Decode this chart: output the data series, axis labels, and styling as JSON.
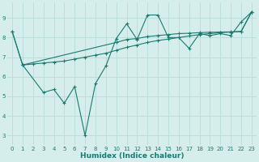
{
  "line1_x": [
    0,
    1,
    2,
    3,
    4,
    5,
    6,
    7,
    8,
    9,
    10,
    11,
    12,
    13,
    14,
    15,
    16,
    17,
    18,
    19,
    20,
    21,
    22,
    23
  ],
  "line1_y": [
    8.3,
    6.6,
    6.65,
    6.7,
    6.75,
    6.8,
    6.9,
    7.0,
    7.1,
    7.2,
    7.35,
    7.5,
    7.62,
    7.75,
    7.85,
    7.92,
    8.0,
    8.08,
    8.15,
    8.2,
    8.25,
    8.28,
    8.32,
    9.3
  ],
  "line2_x": [
    0,
    1,
    3,
    4,
    5,
    6,
    7,
    8,
    9,
    10,
    11,
    12,
    13,
    14,
    15,
    16,
    17,
    18,
    19,
    20,
    21,
    22,
    23
  ],
  "line2_y": [
    8.3,
    6.6,
    5.2,
    5.35,
    4.65,
    5.5,
    3.0,
    5.65,
    6.55,
    7.95,
    8.7,
    7.9,
    9.15,
    9.15,
    8.0,
    8.0,
    7.45,
    8.2,
    8.1,
    8.2,
    8.1,
    8.8,
    9.3
  ],
  "line3_x": [
    1,
    10,
    11,
    12,
    13,
    14,
    15,
    16,
    17,
    18,
    19,
    20,
    21,
    22,
    23
  ],
  "line3_y": [
    6.6,
    7.75,
    7.9,
    7.95,
    8.05,
    8.1,
    8.15,
    8.2,
    8.22,
    8.25,
    8.27,
    8.28,
    8.29,
    8.3,
    9.3
  ],
  "line_color": "#1a7a6e",
  "bg_color": "#d5eeeb",
  "grid_color": "#b8dcd8",
  "xlabel": "Humidex (Indice chaleur)",
  "ylim": [
    2.5,
    9.8
  ],
  "xlim": [
    -0.5,
    23.5
  ],
  "yticks": [
    3,
    4,
    5,
    6,
    7,
    8,
    9
  ],
  "xticks": [
    0,
    1,
    2,
    3,
    4,
    5,
    6,
    7,
    8,
    9,
    10,
    11,
    12,
    13,
    14,
    15,
    16,
    17,
    18,
    19,
    20,
    21,
    22,
    23
  ],
  "marker": "+",
  "markersize": 3.5,
  "linewidth": 0.8,
  "xlabel_fontsize": 6.5,
  "tick_fontsize": 5.0
}
